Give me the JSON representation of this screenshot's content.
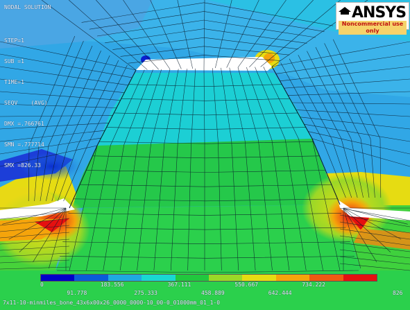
{
  "window": {
    "title": "ANSYS Nodal Solution"
  },
  "solution": {
    "header": "NODAL SOLUTION",
    "lines": [
      "STEP=1",
      "SUB =1",
      "TIME=1",
      "SEQV    (AVG)",
      "DMX =.766761",
      "SMN =.777714",
      "SMX =826.33"
    ]
  },
  "logo": {
    "brand": "ANSYS",
    "tagline": "Noncommercial use only",
    "icon": "graduation-cap-icon"
  },
  "contour": {
    "colors": [
      "#0000c8",
      "#0a5cd9",
      "#1fa9e0",
      "#19d8d2",
      "#21c83e",
      "#9bd827",
      "#e6dc12",
      "#f5a40b",
      "#ef5a12",
      "#e51010"
    ],
    "upper_labels": [
      "0",
      "183.556",
      "367.111",
      "550.667",
      "734.222"
    ],
    "lower_labels": [
      "91.778",
      "275.333",
      "458.889",
      "642.444",
      "826"
    ]
  },
  "footer": {
    "text": "7x11-10-minmiles_bone_43x6x00x26_0000_0000-10_00-0_01000mm_01_1-0"
  }
}
